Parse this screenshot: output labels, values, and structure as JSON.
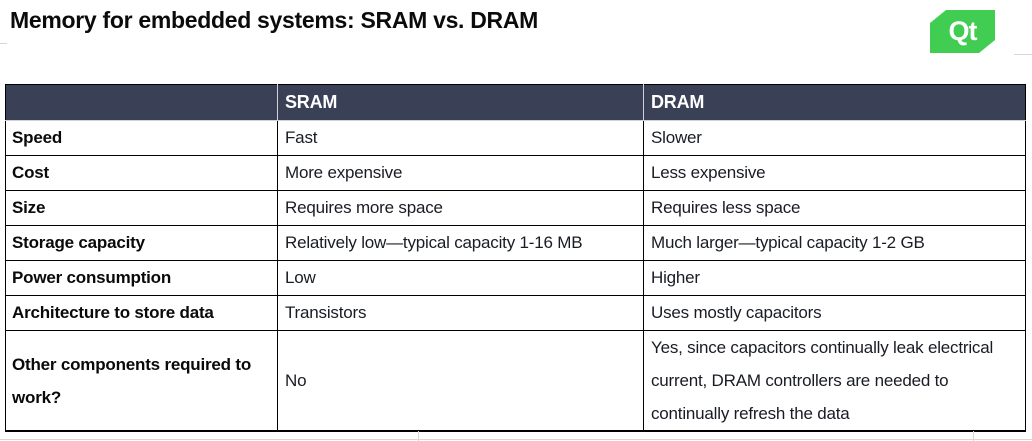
{
  "page": {
    "title": "Memory for embedded systems: SRAM vs. DRAM"
  },
  "logo": {
    "text": "Qt",
    "color": "#41cd52"
  },
  "table": {
    "header": {
      "col1": "",
      "col2": "SRAM",
      "col3": "DRAM"
    },
    "rows": [
      {
        "label": "Speed",
        "sram": "Fast",
        "dram": "Slower"
      },
      {
        "label": "Cost",
        "sram": "More expensive",
        "dram": "Less expensive"
      },
      {
        "label": "Size",
        "sram": "Requires more space",
        "dram": "Requires less space"
      },
      {
        "label": "Storage capacity",
        "sram": "Relatively low—typical capacity 1-16 MB",
        "dram": "Much larger—typical capacity 1-2 GB"
      },
      {
        "label": "Power consumption",
        "sram": "Low",
        "dram": "Higher"
      },
      {
        "label": "Architecture to store data",
        "sram": "Transistors",
        "dram": "Uses mostly capacitors"
      },
      {
        "label": "Other components required to work?",
        "sram": "No",
        "dram": "Yes, since capacitors continually leak electrical current, DRAM controllers are needed to continually refresh the data"
      }
    ],
    "colors": {
      "header_bg": "#3a4156",
      "header_text": "#ffffff",
      "border": "#000000",
      "qt_green": "#41cd52"
    }
  }
}
